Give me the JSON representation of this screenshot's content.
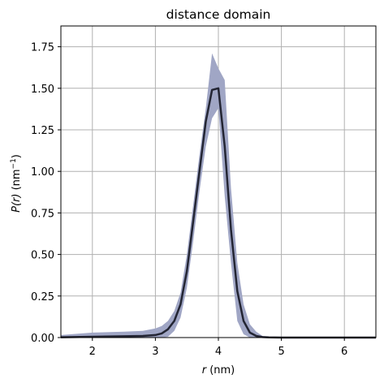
{
  "chart_data": {
    "type": "line",
    "title": "distance domain",
    "xlabel": {
      "var": "r",
      "rest": " (nm)"
    },
    "ylabel": {
      "var": "P(r)",
      "rest": " (nm",
      "sup": "−1",
      "close": ")"
    },
    "xlim": [
      1.5,
      6.5
    ],
    "ylim": [
      0,
      1.875
    ],
    "grid": true,
    "x_ticks": [
      2,
      3,
      4,
      5,
      6
    ],
    "x_tick_labels": [
      "2",
      "3",
      "4",
      "5",
      "6"
    ],
    "y_ticks": [
      0,
      0.25,
      0.5,
      0.75,
      1.0,
      1.25,
      1.5,
      1.75
    ],
    "y_tick_labels": [
      "0.00",
      "0.25",
      "0.50",
      "0.75",
      "1.00",
      "1.25",
      "1.50",
      "1.75"
    ],
    "colors": {
      "line": "#232533",
      "band": "#a0a6c5",
      "grid": "#b0b0b0"
    },
    "series": [
      {
        "x": [
          1.5,
          2.0,
          2.5,
          2.8,
          3.0,
          3.1,
          3.2,
          3.3,
          3.4,
          3.5,
          3.6,
          3.7,
          3.8,
          3.9,
          4.0,
          4.1,
          4.2,
          4.3,
          4.4,
          4.5,
          4.6,
          4.7,
          4.8,
          5.0,
          6.5
        ],
        "values": [
          0.002,
          0.005,
          0.008,
          0.01,
          0.015,
          0.025,
          0.05,
          0.1,
          0.2,
          0.4,
          0.7,
          1.0,
          1.3,
          1.49,
          1.5,
          1.15,
          0.65,
          0.28,
          0.1,
          0.03,
          0.01,
          0.003,
          0.001,
          0.0,
          0.0
        ],
        "upper": [
          0.015,
          0.03,
          0.035,
          0.04,
          0.055,
          0.07,
          0.1,
          0.16,
          0.27,
          0.5,
          0.8,
          1.1,
          1.38,
          1.71,
          1.62,
          1.55,
          0.9,
          0.45,
          0.2,
          0.08,
          0.035,
          0.01,
          0.004,
          0.001,
          0.0
        ],
        "lower": [
          0.0,
          0.0,
          0.0,
          0.0,
          0.0,
          0.0,
          0.005,
          0.04,
          0.12,
          0.3,
          0.58,
          0.88,
          1.15,
          1.32,
          1.38,
          0.85,
          0.45,
          0.1,
          0.02,
          0.0,
          0.0,
          0.0,
          0.0,
          0.0,
          0.0
        ]
      }
    ]
  }
}
